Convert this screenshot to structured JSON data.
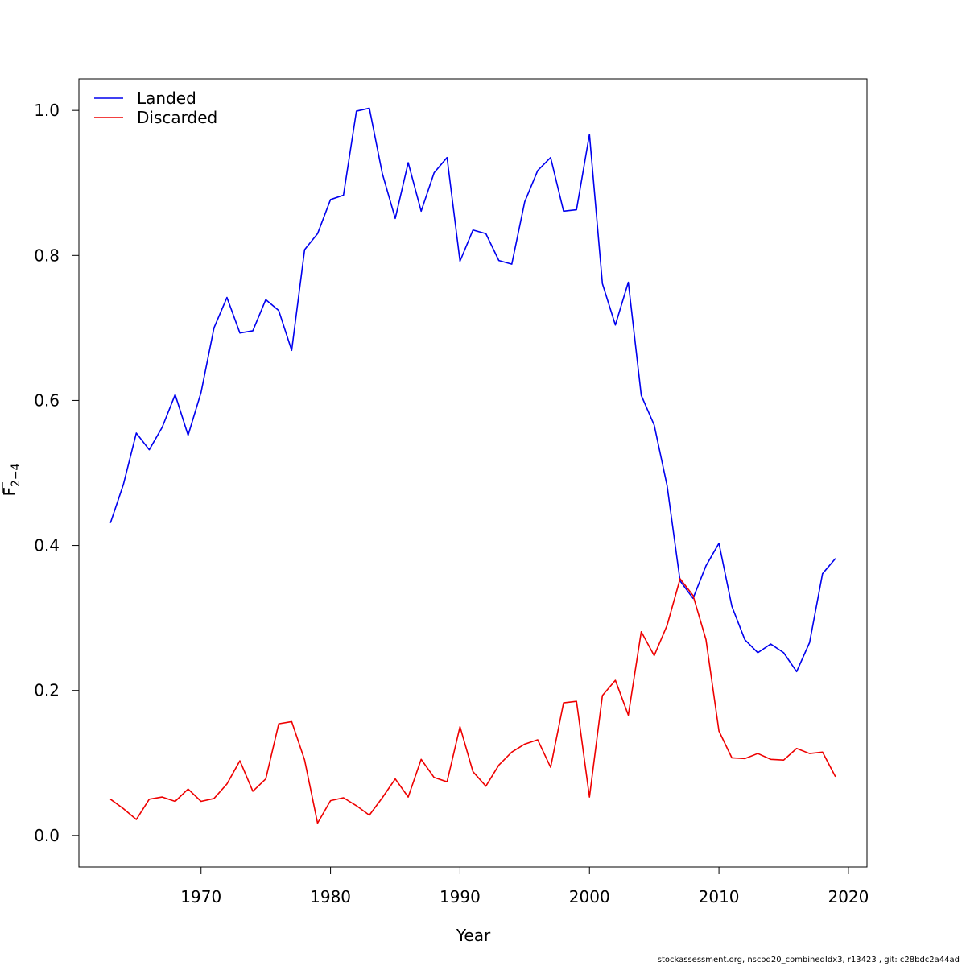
{
  "chart_data": {
    "type": "line",
    "xlabel": "Year",
    "ylabel_base": "F",
    "ylabel_sub": "2−4",
    "xlim": [
      1963,
      2019
    ],
    "ylim": [
      0.0,
      1.0
    ],
    "x_ticks": [
      1970,
      1980,
      1990,
      2000,
      2010,
      2020
    ],
    "y_ticks": [
      0.0,
      0.2,
      0.4,
      0.6,
      0.8,
      1.0
    ],
    "x_tick_labels": [
      "1970",
      "1980",
      "1990",
      "2000",
      "2010",
      "2020"
    ],
    "y_tick_labels": [
      "0.0",
      "0.2",
      "0.4",
      "0.6",
      "0.8",
      "1.0"
    ],
    "grid": false,
    "legend_position": "top-left",
    "x": [
      1963,
      1964,
      1965,
      1966,
      1967,
      1968,
      1969,
      1970,
      1971,
      1972,
      1973,
      1974,
      1975,
      1976,
      1977,
      1978,
      1979,
      1980,
      1981,
      1982,
      1983,
      1984,
      1985,
      1986,
      1987,
      1988,
      1989,
      1990,
      1991,
      1992,
      1993,
      1994,
      1995,
      1996,
      1997,
      1998,
      1999,
      2000,
      2001,
      2002,
      2003,
      2004,
      2005,
      2006,
      2007,
      2008,
      2009,
      2010,
      2011,
      2012,
      2013,
      2014,
      2015,
      2016,
      2017,
      2018,
      2019
    ],
    "series": [
      {
        "name": "Landed",
        "color": "#0000ee",
        "values": [
          0.431,
          0.484,
          0.555,
          0.532,
          0.563,
          0.608,
          0.552,
          0.611,
          0.7,
          0.742,
          0.693,
          0.696,
          0.739,
          0.724,
          0.669,
          0.808,
          0.83,
          0.877,
          0.883,
          0.999,
          1.003,
          0.913,
          0.851,
          0.928,
          0.861,
          0.914,
          0.935,
          0.792,
          0.835,
          0.83,
          0.793,
          0.788,
          0.874,
          0.917,
          0.935,
          0.861,
          0.863,
          0.967,
          0.761,
          0.704,
          0.763,
          0.607,
          0.566,
          0.482,
          0.351,
          0.327,
          0.372,
          0.403,
          0.316,
          0.27,
          0.252,
          0.264,
          0.252,
          0.226,
          0.266,
          0.361,
          0.382
        ]
      },
      {
        "name": "Discarded",
        "color": "#ee0000",
        "values": [
          0.05,
          0.037,
          0.022,
          0.05,
          0.053,
          0.047,
          0.064,
          0.047,
          0.051,
          0.071,
          0.103,
          0.061,
          0.078,
          0.154,
          0.157,
          0.104,
          0.017,
          0.048,
          0.052,
          0.041,
          0.028,
          0.052,
          0.078,
          0.053,
          0.105,
          0.08,
          0.074,
          0.15,
          0.088,
          0.068,
          0.097,
          0.115,
          0.126,
          0.132,
          0.094,
          0.183,
          0.185,
          0.053,
          0.193,
          0.214,
          0.166,
          0.281,
          0.248,
          0.29,
          0.354,
          0.331,
          0.27,
          0.144,
          0.107,
          0.106,
          0.113,
          0.105,
          0.104,
          0.12,
          0.113,
          0.115,
          0.081
        ]
      }
    ]
  },
  "footer_text": "stockassessment.org, nscod20_combinedIdx3, r13423 , git: c28bdc2a44ad"
}
